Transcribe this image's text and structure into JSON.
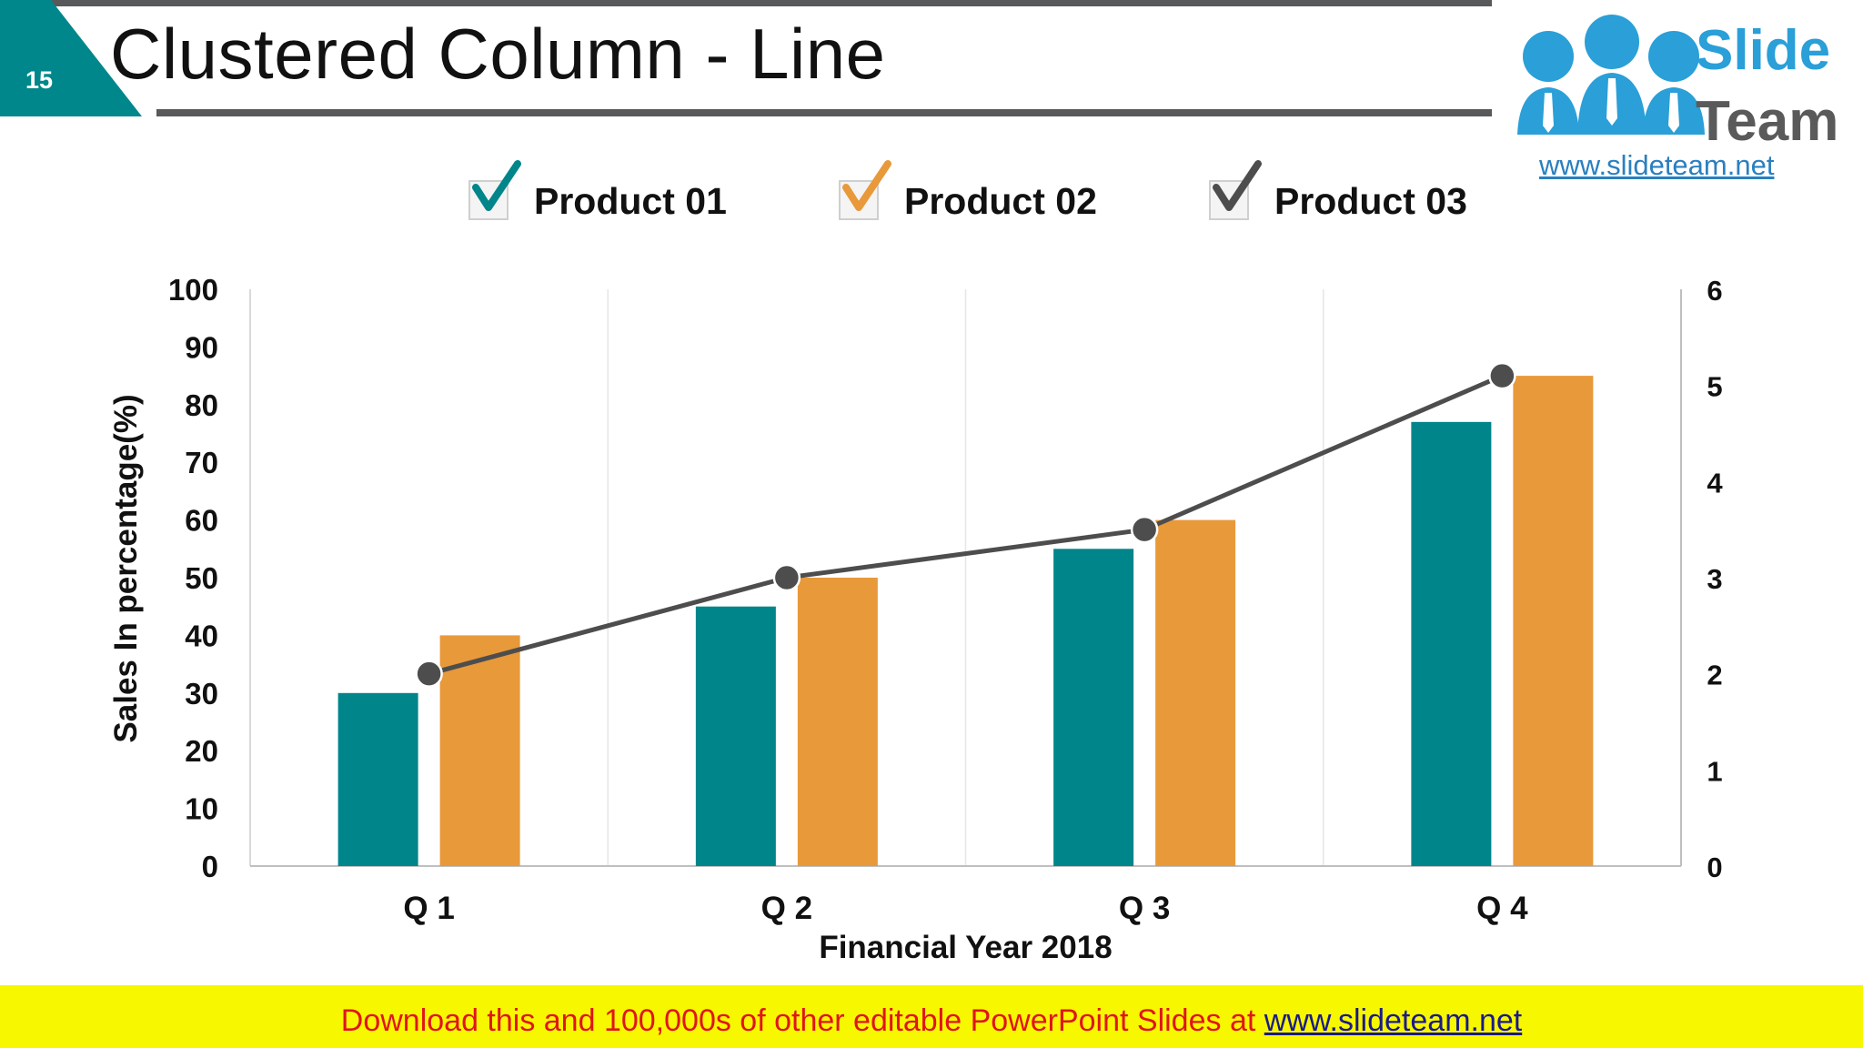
{
  "slide": {
    "number": "15",
    "title": "Clustered Column - Line"
  },
  "logo": {
    "line1": "Slide",
    "line2": "Team",
    "url": "www.slideteam.net"
  },
  "chart_data": {
    "type": "bar",
    "categories": [
      "Q 1",
      "Q 2",
      "Q 3",
      "Q 4"
    ],
    "series": [
      {
        "name": "Product 01",
        "type": "bar",
        "axis": "left",
        "color": "#00858a",
        "values": [
          30,
          45,
          55,
          77
        ]
      },
      {
        "name": "Product 02",
        "type": "bar",
        "axis": "left",
        "color": "#e8993a",
        "values": [
          40,
          50,
          60,
          85
        ]
      },
      {
        "name": "Product 03",
        "type": "line",
        "axis": "right",
        "color": "#4d4d4d",
        "values": [
          2,
          3,
          3.5,
          5.1
        ]
      }
    ],
    "xlabel": "Financial Year 2018",
    "ylabel": "Sales In percentage(%)",
    "ylim": [
      0,
      100
    ],
    "yticks": [
      "0",
      "10",
      "20",
      "30",
      "40",
      "50",
      "60",
      "70",
      "80",
      "90",
      "100"
    ],
    "y2lim": [
      0,
      6
    ],
    "y2ticks": [
      "0",
      "1",
      "2",
      "3",
      "4",
      "5",
      "6"
    ],
    "legend_position": "top",
    "grid": "vertical"
  },
  "legend": [
    {
      "label": "Product 01",
      "check_color": "#00858a"
    },
    {
      "label": "Product 02",
      "check_color": "#e8993a"
    },
    {
      "label": "Product 03",
      "check_color": "#4d4d4d"
    }
  ],
  "banner": {
    "text": "Download this and 100,000s of other editable PowerPoint Slides at ",
    "link": "www.slideteam.net"
  }
}
